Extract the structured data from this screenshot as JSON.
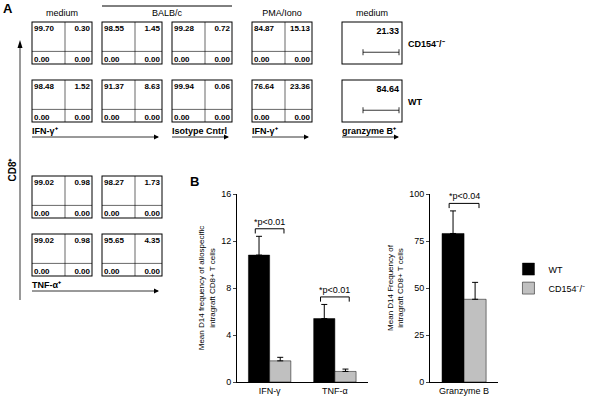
{
  "panel_a": {
    "label": "A",
    "y_label": "CD8⁺",
    "top": {
      "headers": [
        {
          "text": "medium",
          "cols": [
            0
          ]
        },
        {
          "text": "BALB/c",
          "cols": [
            1,
            2
          ]
        },
        {
          "text": "PMA/Iono",
          "cols": [
            3
          ]
        },
        {
          "text": "medium",
          "cols": [
            4
          ]
        }
      ],
      "x_labels": [
        {
          "text": "IFN-γ⁺",
          "cols": [
            0,
            1
          ]
        },
        {
          "text": "Isotype Cntrl",
          "cols": [
            2
          ]
        },
        {
          "text": "IFN-γ⁺",
          "cols": [
            3
          ]
        },
        {
          "text": "granzyme B⁺",
          "cols": [
            4
          ]
        }
      ],
      "rows": [
        {
          "name": "CD154⁻/⁻",
          "plots": [
            [
              "99.70",
              "0.30",
              "0.00",
              "0.00"
            ],
            [
              "98.55",
              "1.45",
              "0.00",
              "0.00"
            ],
            [
              "99.28",
              "0.72",
              "0.00",
              "0.00"
            ],
            [
              "84.87",
              "15.13",
              "0.00",
              "0.00"
            ]
          ],
          "histogram": "21.33"
        },
        {
          "name": "WT",
          "plots": [
            [
              "98.48",
              "1.52",
              "0.00",
              "0.00"
            ],
            [
              "91.37",
              "8.63",
              "0.00",
              "0.00"
            ],
            [
              "99.94",
              "0.06",
              "0.00",
              "0.00"
            ],
            [
              "76.64",
              "23.36",
              "0.00",
              "0.00"
            ]
          ],
          "histogram": "84.64"
        }
      ]
    },
    "bottom": {
      "x_label": "TNF-α⁺",
      "rows": [
        {
          "plots": [
            [
              "99.02",
              "0.98",
              "0.00",
              "0.00"
            ],
            [
              "98.27",
              "1.73",
              "0.00",
              "0.00"
            ]
          ]
        },
        {
          "plots": [
            [
              "99.02",
              "0.98",
              "0.00",
              "0.00"
            ],
            [
              "95.65",
              "4.35",
              "0.00",
              "0.00"
            ]
          ]
        }
      ]
    }
  },
  "panel_b": {
    "label": "B"
  },
  "chart_data": [
    {
      "type": "bar",
      "y_label": "Mean D14 frequency of allospecific intragraft CD8+ T cells",
      "categories": [
        "IFN-γ",
        "TNF-α"
      ],
      "series": [
        {
          "name": "WT",
          "color": "#000000",
          "values": [
            10.8,
            5.4
          ],
          "errors": [
            1.6,
            1.2
          ]
        },
        {
          "name": "CD154⁻/⁻",
          "color": "#c0c0c0",
          "values": [
            1.8,
            0.9
          ],
          "errors": [
            0.3,
            0.2
          ]
        }
      ],
      "ylim": [
        0,
        16
      ],
      "yticks": [
        0,
        4,
        8,
        12,
        16
      ],
      "annotations": [
        {
          "category": "IFN-γ",
          "text": "*p<0.01"
        },
        {
          "category": "TNF-α",
          "text": "*p<0.01"
        }
      ]
    },
    {
      "type": "bar",
      "y_label": "Mean D14 Frequency of intragraft CD8+ T cells",
      "categories": [
        "Granzyme B"
      ],
      "series": [
        {
          "name": "WT",
          "color": "#000000",
          "values": [
            79
          ],
          "errors": [
            12
          ]
        },
        {
          "name": "CD154⁻/⁻",
          "color": "#c0c0c0",
          "values": [
            44
          ],
          "errors": [
            9
          ]
        }
      ],
      "ylim": [
        0,
        100
      ],
      "yticks": [
        0,
        25,
        50,
        75,
        100
      ],
      "legend": "right",
      "annotations": [
        {
          "category": "Granzyme B",
          "text": "*p<0.04"
        }
      ]
    }
  ]
}
